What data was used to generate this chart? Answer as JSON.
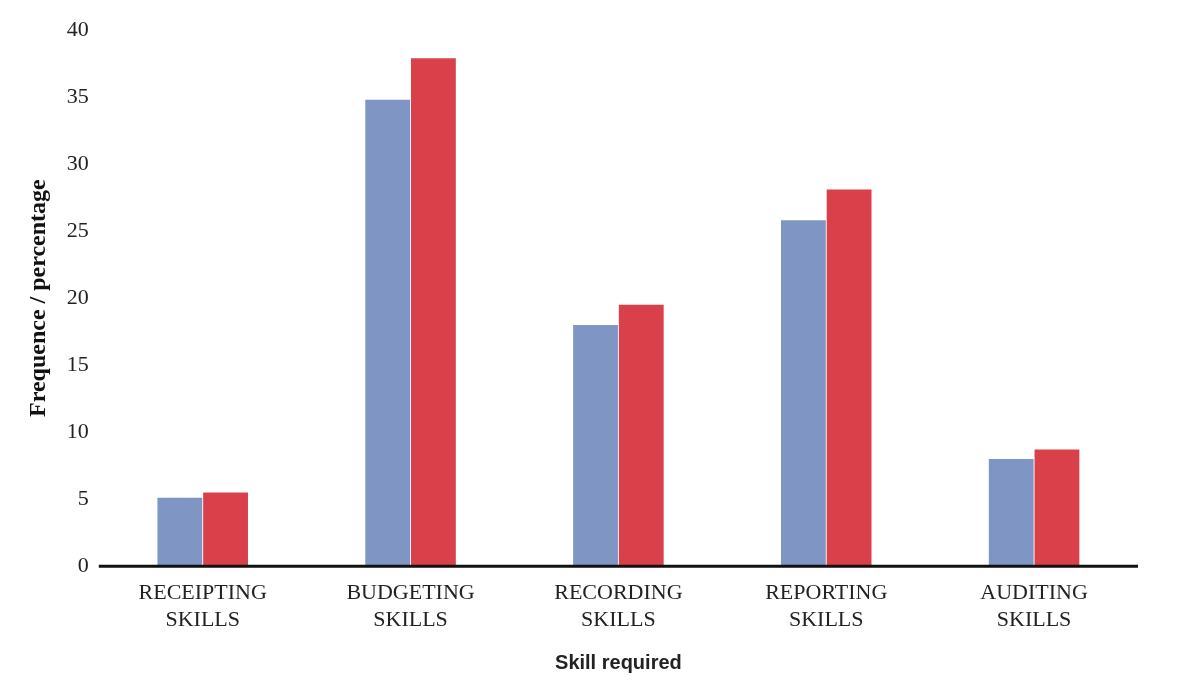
{
  "chart_data": {
    "type": "bar",
    "xlabel": "Skill required",
    "ylabel": "Frequence / percentage",
    "categories": [
      "RECEIPTING SKILLS",
      "BUDGETING SKILLS",
      "RECORDING SKILLS",
      "REPORTING SKILLS",
      "AUDITING SKILLS"
    ],
    "series": [
      {
        "color": "#7f95c4",
        "values": [
          5.1,
          34.8,
          18,
          25.8,
          8
        ]
      },
      {
        "color": "#d9404a",
        "values": [
          5.5,
          37.9,
          19.5,
          28.1,
          8.7
        ]
      }
    ],
    "ylim": [
      0,
      40
    ],
    "yticks": [
      0,
      5,
      10,
      15,
      20,
      25,
      30,
      35,
      40
    ],
    "grid": false,
    "legend": false
  }
}
